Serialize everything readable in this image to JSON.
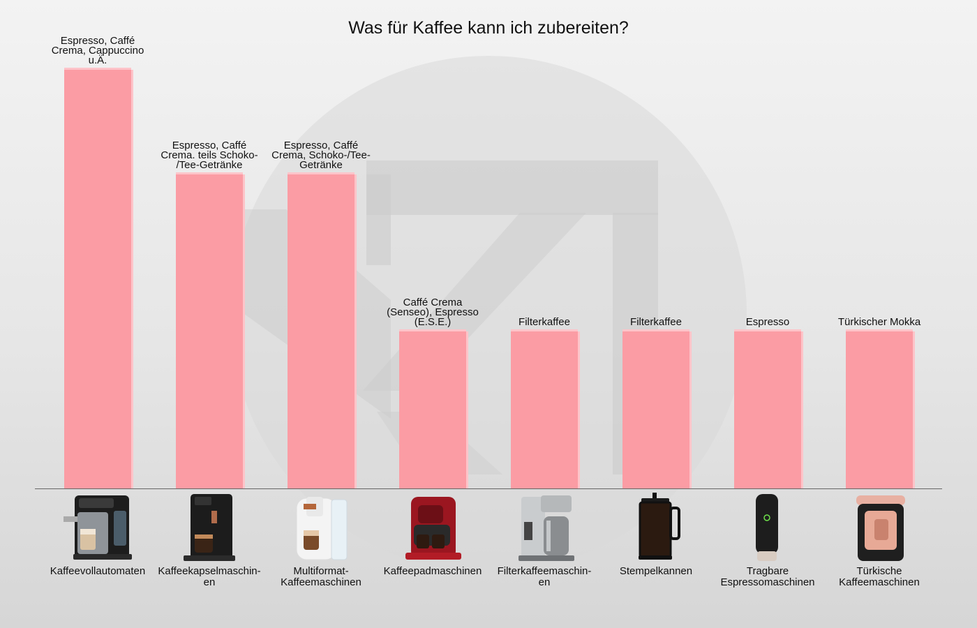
{
  "chart_data": {
    "type": "bar",
    "title": "Was für Kaffee kann ich zubereiten?",
    "xlabel": "",
    "ylabel": "",
    "ylim": [
      0,
      4.2
    ],
    "grid": false,
    "categories": [
      "Kaffeevollautomaten",
      "Kaffeekapselmaschin-en",
      "Multiformat-Kaffeemaschinen",
      "Kaffeepadmaschinen",
      "Filterkaffeemaschin-en",
      "Stempelkannen",
      "Tragbare Espressomaschinen",
      "Türkische Kaffeemaschinen"
    ],
    "category_lines": [
      [
        "Kaffeevollautomaten"
      ],
      [
        "Kaffeekapselmaschin-",
        "en"
      ],
      [
        "Multiformat-",
        "Kaffeemaschinen"
      ],
      [
        "Kaffeepadmaschinen"
      ],
      [
        "Filterkaffeemaschin-",
        "en"
      ],
      [
        "Stempelkannen"
      ],
      [
        "Tragbare",
        "Espressomaschinen"
      ],
      [
        "Türkische",
        "Kaffeemaschinen"
      ]
    ],
    "values": [
      4,
      3,
      3,
      1.5,
      1.5,
      1.5,
      1.5,
      1.5
    ],
    "data_labels": [
      [
        "Espresso, Caffé",
        "Crema, Cappuccino",
        "u.Ä."
      ],
      [
        "Espresso, Caffé",
        "Crema. teils Schoko-",
        "/Tee-Getränke"
      ],
      [
        "Espresso, Caffé",
        "Crema, Schoko-/Tee-",
        "Getränke"
      ],
      [
        "Caffé Crema",
        "(Senseo), Espresso",
        "(E.S.E.)"
      ],
      [
        "Filterkaffee"
      ],
      [
        "Filterkaffee"
      ],
      [
        "Espresso"
      ],
      [
        "Türkischer Mokka"
      ]
    ],
    "icons": [
      "coffee-machine-icon",
      "capsule-machine-icon",
      "multiformat-machine-icon",
      "pad-machine-icon",
      "filter-coffee-machine-icon",
      "french-press-icon",
      "portable-espresso-icon",
      "turkish-coffee-machine-icon"
    ],
    "colors": {
      "bar": "#fb9ca4",
      "bar_edge": "#fdc4c9",
      "text": "#111111",
      "baseline": "#666666"
    }
  }
}
